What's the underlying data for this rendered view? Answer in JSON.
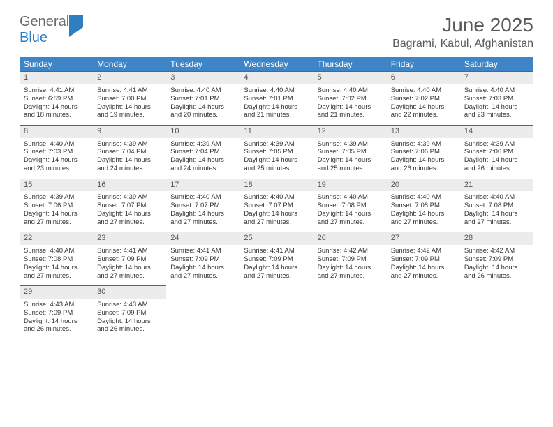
{
  "logo": {
    "word1": "General",
    "word2": "Blue"
  },
  "title": {
    "month": "June 2025",
    "location": "Bagrami, Kabul, Afghanistan"
  },
  "colors": {
    "header_bg": "#3d85c6",
    "header_text": "#ffffff",
    "daynum_bg": "#ececec",
    "daynum_text": "#555555",
    "divider": "#2f6fa6",
    "body_text": "#333333",
    "logo_gray": "#6b6b6b",
    "logo_blue": "#2f7ec2"
  },
  "typography": {
    "title_fontsize": 28,
    "location_fontsize": 16,
    "dayheader_fontsize": 12,
    "daynum_fontsize": 11,
    "cell_fontsize": 9.5
  },
  "weekdays": [
    "Sunday",
    "Monday",
    "Tuesday",
    "Wednesday",
    "Thursday",
    "Friday",
    "Saturday"
  ],
  "weeks": [
    [
      {
        "n": "1",
        "sr": "Sunrise: 4:41 AM",
        "ss": "Sunset: 6:59 PM",
        "d1": "Daylight: 14 hours",
        "d2": "and 18 minutes."
      },
      {
        "n": "2",
        "sr": "Sunrise: 4:41 AM",
        "ss": "Sunset: 7:00 PM",
        "d1": "Daylight: 14 hours",
        "d2": "and 19 minutes."
      },
      {
        "n": "3",
        "sr": "Sunrise: 4:40 AM",
        "ss": "Sunset: 7:01 PM",
        "d1": "Daylight: 14 hours",
        "d2": "and 20 minutes."
      },
      {
        "n": "4",
        "sr": "Sunrise: 4:40 AM",
        "ss": "Sunset: 7:01 PM",
        "d1": "Daylight: 14 hours",
        "d2": "and 21 minutes."
      },
      {
        "n": "5",
        "sr": "Sunrise: 4:40 AM",
        "ss": "Sunset: 7:02 PM",
        "d1": "Daylight: 14 hours",
        "d2": "and 21 minutes."
      },
      {
        "n": "6",
        "sr": "Sunrise: 4:40 AM",
        "ss": "Sunset: 7:02 PM",
        "d1": "Daylight: 14 hours",
        "d2": "and 22 minutes."
      },
      {
        "n": "7",
        "sr": "Sunrise: 4:40 AM",
        "ss": "Sunset: 7:03 PM",
        "d1": "Daylight: 14 hours",
        "d2": "and 23 minutes."
      }
    ],
    [
      {
        "n": "8",
        "sr": "Sunrise: 4:40 AM",
        "ss": "Sunset: 7:03 PM",
        "d1": "Daylight: 14 hours",
        "d2": "and 23 minutes."
      },
      {
        "n": "9",
        "sr": "Sunrise: 4:39 AM",
        "ss": "Sunset: 7:04 PM",
        "d1": "Daylight: 14 hours",
        "d2": "and 24 minutes."
      },
      {
        "n": "10",
        "sr": "Sunrise: 4:39 AM",
        "ss": "Sunset: 7:04 PM",
        "d1": "Daylight: 14 hours",
        "d2": "and 24 minutes."
      },
      {
        "n": "11",
        "sr": "Sunrise: 4:39 AM",
        "ss": "Sunset: 7:05 PM",
        "d1": "Daylight: 14 hours",
        "d2": "and 25 minutes."
      },
      {
        "n": "12",
        "sr": "Sunrise: 4:39 AM",
        "ss": "Sunset: 7:05 PM",
        "d1": "Daylight: 14 hours",
        "d2": "and 25 minutes."
      },
      {
        "n": "13",
        "sr": "Sunrise: 4:39 AM",
        "ss": "Sunset: 7:06 PM",
        "d1": "Daylight: 14 hours",
        "d2": "and 26 minutes."
      },
      {
        "n": "14",
        "sr": "Sunrise: 4:39 AM",
        "ss": "Sunset: 7:06 PM",
        "d1": "Daylight: 14 hours",
        "d2": "and 26 minutes."
      }
    ],
    [
      {
        "n": "15",
        "sr": "Sunrise: 4:39 AM",
        "ss": "Sunset: 7:06 PM",
        "d1": "Daylight: 14 hours",
        "d2": "and 27 minutes."
      },
      {
        "n": "16",
        "sr": "Sunrise: 4:39 AM",
        "ss": "Sunset: 7:07 PM",
        "d1": "Daylight: 14 hours",
        "d2": "and 27 minutes."
      },
      {
        "n": "17",
        "sr": "Sunrise: 4:40 AM",
        "ss": "Sunset: 7:07 PM",
        "d1": "Daylight: 14 hours",
        "d2": "and 27 minutes."
      },
      {
        "n": "18",
        "sr": "Sunrise: 4:40 AM",
        "ss": "Sunset: 7:07 PM",
        "d1": "Daylight: 14 hours",
        "d2": "and 27 minutes."
      },
      {
        "n": "19",
        "sr": "Sunrise: 4:40 AM",
        "ss": "Sunset: 7:08 PM",
        "d1": "Daylight: 14 hours",
        "d2": "and 27 minutes."
      },
      {
        "n": "20",
        "sr": "Sunrise: 4:40 AM",
        "ss": "Sunset: 7:08 PM",
        "d1": "Daylight: 14 hours",
        "d2": "and 27 minutes."
      },
      {
        "n": "21",
        "sr": "Sunrise: 4:40 AM",
        "ss": "Sunset: 7:08 PM",
        "d1": "Daylight: 14 hours",
        "d2": "and 27 minutes."
      }
    ],
    [
      {
        "n": "22",
        "sr": "Sunrise: 4:40 AM",
        "ss": "Sunset: 7:08 PM",
        "d1": "Daylight: 14 hours",
        "d2": "and 27 minutes."
      },
      {
        "n": "23",
        "sr": "Sunrise: 4:41 AM",
        "ss": "Sunset: 7:09 PM",
        "d1": "Daylight: 14 hours",
        "d2": "and 27 minutes."
      },
      {
        "n": "24",
        "sr": "Sunrise: 4:41 AM",
        "ss": "Sunset: 7:09 PM",
        "d1": "Daylight: 14 hours",
        "d2": "and 27 minutes."
      },
      {
        "n": "25",
        "sr": "Sunrise: 4:41 AM",
        "ss": "Sunset: 7:09 PM",
        "d1": "Daylight: 14 hours",
        "d2": "and 27 minutes."
      },
      {
        "n": "26",
        "sr": "Sunrise: 4:42 AM",
        "ss": "Sunset: 7:09 PM",
        "d1": "Daylight: 14 hours",
        "d2": "and 27 minutes."
      },
      {
        "n": "27",
        "sr": "Sunrise: 4:42 AM",
        "ss": "Sunset: 7:09 PM",
        "d1": "Daylight: 14 hours",
        "d2": "and 27 minutes."
      },
      {
        "n": "28",
        "sr": "Sunrise: 4:42 AM",
        "ss": "Sunset: 7:09 PM",
        "d1": "Daylight: 14 hours",
        "d2": "and 26 minutes."
      }
    ],
    [
      {
        "n": "29",
        "sr": "Sunrise: 4:43 AM",
        "ss": "Sunset: 7:09 PM",
        "d1": "Daylight: 14 hours",
        "d2": "and 26 minutes."
      },
      {
        "n": "30",
        "sr": "Sunrise: 4:43 AM",
        "ss": "Sunset: 7:09 PM",
        "d1": "Daylight: 14 hours",
        "d2": "and 26 minutes."
      },
      null,
      null,
      null,
      null,
      null
    ]
  ]
}
